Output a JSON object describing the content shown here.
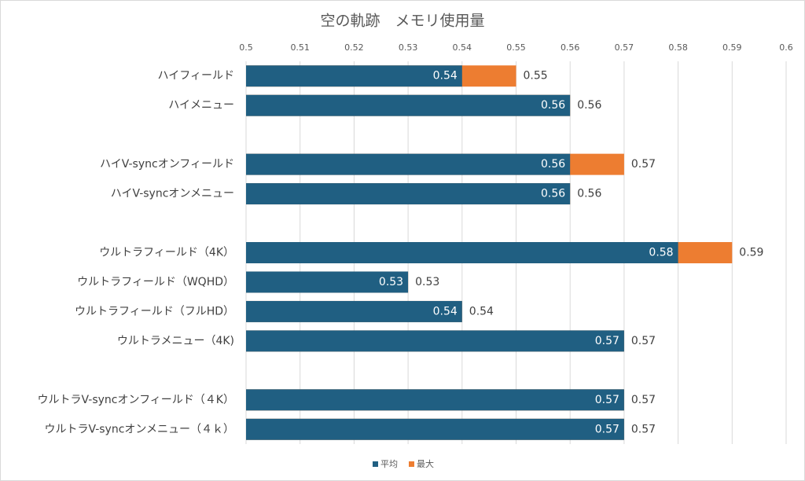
{
  "chart_data": {
    "type": "bar",
    "orientation": "horizontal",
    "title": "空の軌跡　メモリ使用量",
    "categories": [
      "ハイフィールド",
      "ハイメニュー",
      null,
      "ハイV-syncオンフィールド",
      "ハイV-syncオンメニュー",
      null,
      "ウルトラフィールド（4K）",
      "ウルトラフィールド（WQHD）",
      "ウルトラフィールド（フルHD）",
      "ウルトラメニュー（4K)",
      null,
      "ウルトラV-syncオンフィールド（４K）",
      "ウルトラV-syncオンメニュー（４ｋ）"
    ],
    "series": [
      {
        "name": "平均",
        "color": "#205f82",
        "values": [
          0.54,
          0.56,
          null,
          0.56,
          0.56,
          null,
          0.58,
          0.53,
          0.54,
          0.57,
          null,
          0.57,
          0.57
        ]
      },
      {
        "name": "最大",
        "color": "#ed7d31",
        "values": [
          0.55,
          0.56,
          null,
          0.57,
          0.56,
          null,
          0.59,
          0.53,
          0.54,
          0.57,
          null,
          0.57,
          0.57
        ]
      }
    ],
    "xlim": [
      0.5,
      0.6
    ],
    "xticks": [
      0.5,
      0.51,
      0.52,
      0.53,
      0.54,
      0.55,
      0.56,
      0.57,
      0.58,
      0.59,
      0.6
    ],
    "grid": true,
    "legend": "bottom"
  }
}
